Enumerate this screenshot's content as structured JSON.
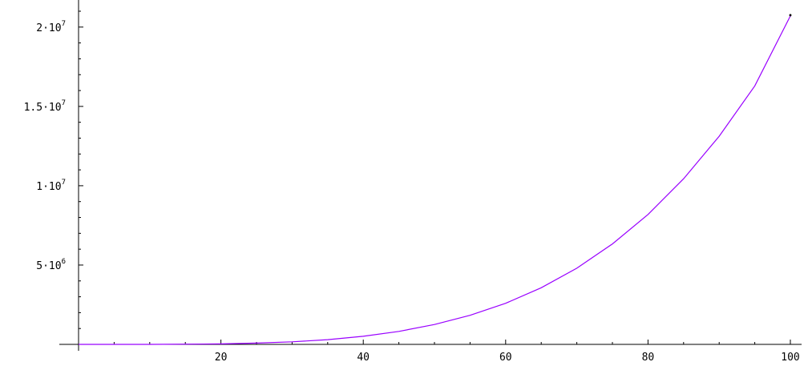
{
  "chart_data": {
    "type": "line",
    "title": "",
    "xlabel": "",
    "ylabel": "",
    "xlim": [
      0,
      100
    ],
    "ylim": [
      0,
      21000000
    ],
    "grid": false,
    "x_ticks": [
      {
        "value": 20,
        "label": "20"
      },
      {
        "value": 40,
        "label": "40"
      },
      {
        "value": 60,
        "label": "60"
      },
      {
        "value": 80,
        "label": "80"
      },
      {
        "value": 100,
        "label": "100"
      }
    ],
    "y_ticks": [
      {
        "value": 5000000,
        "mantissa": "5·10",
        "exponent": "6"
      },
      {
        "value": 10000000,
        "mantissa": "1·10",
        "exponent": "7"
      },
      {
        "value": 15000000,
        "mantissa": "1.5·10",
        "exponent": "7"
      },
      {
        "value": 20000000,
        "mantissa": "2·10",
        "exponent": "7"
      }
    ],
    "series": [
      {
        "color": "#9900ff",
        "x": [
          0,
          10,
          20,
          25,
          30,
          35,
          40,
          45,
          50,
          55,
          60,
          65,
          70,
          75,
          80,
          85,
          90,
          95,
          100
        ],
        "y": [
          0,
          2000,
          32000,
          80000,
          160000,
          300000,
          510000,
          820000,
          1250000,
          1830000,
          2590000,
          3570000,
          4800000,
          6330000,
          8190000,
          10440000,
          13120000,
          16290000,
          20700000
        ]
      }
    ],
    "marker": {
      "x": 100,
      "y": 20700000,
      "color": "#000000"
    }
  }
}
